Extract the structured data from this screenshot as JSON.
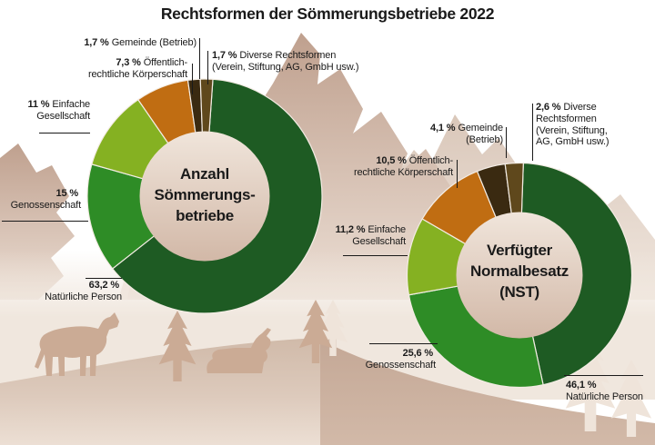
{
  "title": "Rechtsformen der Sömmerungsbetriebe 2022",
  "chart_data": [
    {
      "type": "pie",
      "variant": "donut",
      "title": "Anzahl Sömmerungsbetriebe",
      "center_label": "Anzahl\nSömmerungs-\nbetriebe",
      "start_angle_deg": 4,
      "legend_position": "callouts",
      "segments": [
        {
          "label": "Natürliche Person",
          "value": 63.2,
          "pct": "63,2 %",
          "callout": "\nNatürliche Person",
          "color": "#1e5b23"
        },
        {
          "label": "Genossenschaft",
          "value": 15,
          "pct": "15 %",
          "callout": "\nGenossenschaft",
          "color": "#2e8c26"
        },
        {
          "label": "Einfache Gesellschaft",
          "value": 11,
          "pct": "11 %",
          "callout": "Einfache\nGesellschaft",
          "color": "#85b122"
        },
        {
          "label": "Öffentlich-rechtliche Körperschaft",
          "value": 7.3,
          "pct": "7,3 %",
          "callout": "Öffentlich-\nrechtliche Körperschaft",
          "color": "#c06d12"
        },
        {
          "label": "Gemeinde (Betrieb)",
          "value": 1.7,
          "pct": "1,7 %",
          "callout": "Gemeinde (Betrieb)",
          "color": "#3a2a11"
        },
        {
          "label": "Diverse Rechtsformen (Verein, Stiftung, AG, GmbH usw.)",
          "value": 1.7,
          "pct": "1,7 %",
          "callout": "Diverse Rechtsformen\n(Verein, Stiftung, AG, GmbH usw.)",
          "color": "#5f481c"
        }
      ]
    },
    {
      "type": "pie",
      "variant": "donut",
      "title": "Verfügter Normalbesatz (NST)",
      "center_label": "Verfügter\nNormalbesatz\n(NST)",
      "start_angle_deg": 2,
      "legend_position": "callouts",
      "segments": [
        {
          "label": "Natürliche Person",
          "value": 46.1,
          "pct": "46,1 %",
          "callout": "\nNatürliche Person",
          "color": "#1e5b23"
        },
        {
          "label": "Genossenschaft",
          "value": 25.6,
          "pct": "25,6 %",
          "callout": "\nGenossenschaft",
          "color": "#2e8c26"
        },
        {
          "label": "Einfache Gesellschaft",
          "value": 11.2,
          "pct": "11,2 %",
          "callout": "Einfache\nGesellschaft",
          "color": "#85b122"
        },
        {
          "label": "Öffentlich-rechtliche Körperschaft",
          "value": 10.5,
          "pct": "10,5 %",
          "callout": "Öffentlich-\nrechtliche Körperschaft",
          "color": "#c06d12"
        },
        {
          "label": "Gemeinde (Betrieb)",
          "value": 4.1,
          "pct": "4,1 %",
          "callout": "Gemeinde\n(Betrieb)",
          "color": "#3a2a11"
        },
        {
          "label": "Diverse Rechtsformen (Verein, Stiftung, AG, GmbH usw.)",
          "value": 2.6,
          "pct": "2,6 %",
          "callout": "Diverse\nRechtsformen\n(Verein, Stiftung,\nAG, GmbH usw.)",
          "color": "#5f481c"
        }
      ]
    }
  ],
  "style": {
    "separator_color": "#f3ece4",
    "label_color": "#1a1a1a",
    "center_fill_top": "#f0e5db",
    "center_fill_bottom": "#d2b8a7",
    "background": {
      "sky": "#ffffff",
      "mountain_mid_top": "#bfa08e",
      "mountain_light_top": "#d9c6b8",
      "valley": "#f0e7de",
      "ground_top": "#d0baa9",
      "slope_top": "#c4a896",
      "silhouette": "#cbab95",
      "light_tree": "#efe4da"
    }
  }
}
